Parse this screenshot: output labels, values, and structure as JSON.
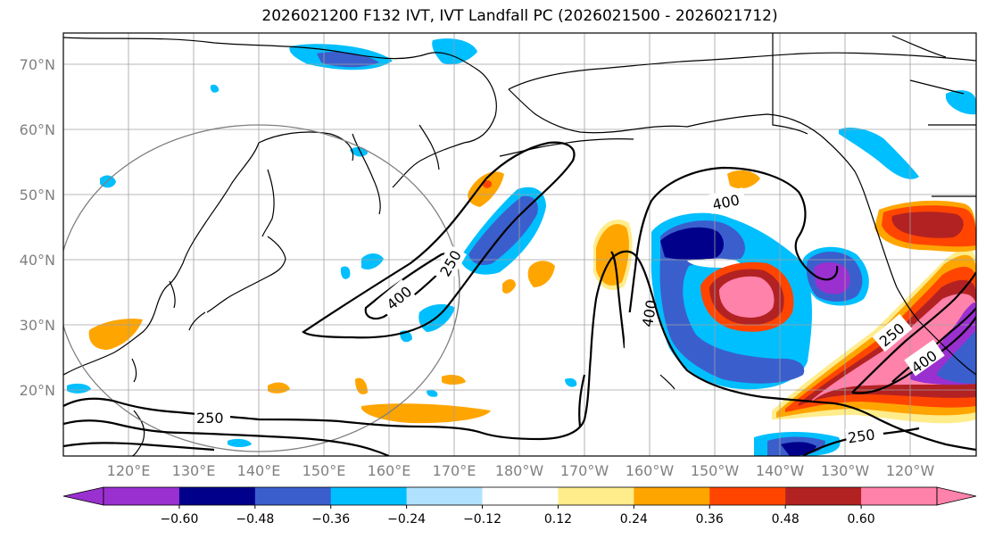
{
  "title": "2026021200 F132 IVT, IVT Landfall PC (2026021500 - 2026021712)",
  "lat_labels": [
    "70°N",
    "60°N",
    "50°N",
    "40°N",
    "30°N",
    "20°N"
  ],
  "lon_labels": [
    "120°E",
    "130°E",
    "140°E",
    "150°E",
    "160°E",
    "170°E",
    "180°W",
    "170°W",
    "160°W",
    "150°W",
    "140°W",
    "130°W",
    "120°W"
  ],
  "contour_labels": [
    "250",
    "400",
    "400",
    "400",
    "250",
    "250",
    "250",
    "400"
  ],
  "colorbar": {
    "colors": [
      "#9b30d0",
      "#00008b",
      "#3a5fcd",
      "#00bfff",
      "#b0e2ff",
      "#ffffff",
      "#ffec8b",
      "#ffa500",
      "#ff4500",
      "#b22222",
      "#ff82ab"
    ],
    "under_color": "#9b30d0",
    "over_color": "#ff82ab",
    "tick_labels": [
      "−0.60",
      "−0.48",
      "−0.36",
      "−0.24",
      "−0.12",
      "0.12",
      "0.24",
      "0.36",
      "0.48",
      "0.60"
    ]
  }
}
